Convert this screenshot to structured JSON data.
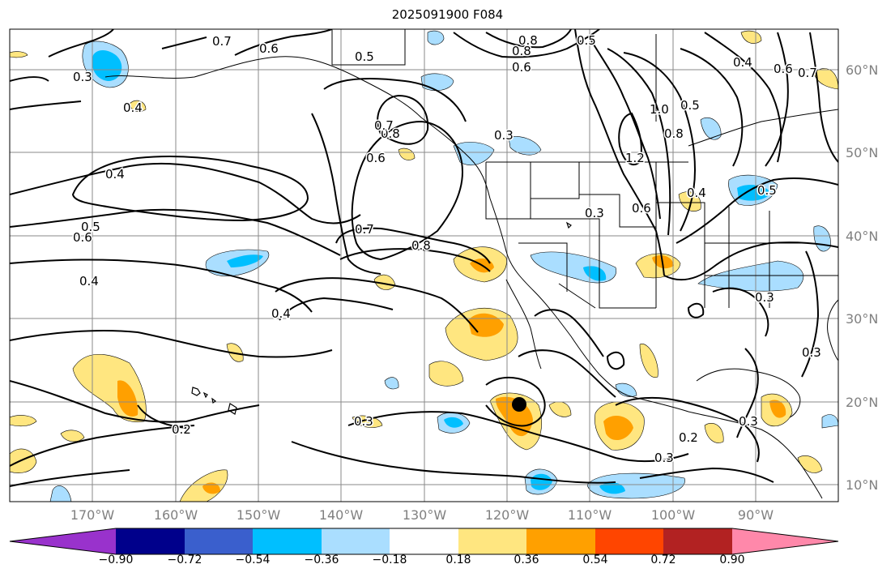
{
  "title": "2025091900 F084",
  "lat_labels": [
    "60°N",
    "50°N",
    "40°N",
    "30°N",
    "20°N",
    "10°N"
  ],
  "lon_labels": [
    "170°W",
    "160°W",
    "150°W",
    "140°W",
    "130°W",
    "120°W",
    "110°W",
    "100°W",
    "90°W"
  ],
  "colorbar": {
    "ticks": [
      "−0.90",
      "−0.72",
      "−0.54",
      "−0.36",
      "−0.18",
      "0.18",
      "0.36",
      "0.54",
      "0.72",
      "0.90"
    ],
    "colors": [
      "#9932cc",
      "#00008b",
      "#3a5fcd",
      "#00bfff",
      "#aadeff",
      "#ffffff",
      "#ffe680",
      "#ffa000",
      "#ff4500",
      "#b22222",
      "#ff88aa"
    ]
  },
  "contour_labels": [
    "0.7",
    "0.6",
    "0.5",
    "0.8",
    "0.8",
    "0.6",
    "0.5",
    "0.4",
    "0.6",
    "0.7",
    "0.4",
    "0.8",
    "0.6",
    "0.3",
    "1.0",
    "0.8",
    "0.5",
    "1.2",
    "0.7",
    "0.4",
    "0.3",
    "0.6",
    "0.5",
    "0.4",
    "0.5",
    "0.6",
    "0.7",
    "0.8",
    "0.4",
    "0.4",
    "0.3",
    "0.2",
    "0.3",
    "0.2",
    "0.3",
    "0.3",
    "0.3",
    "0.3"
  ],
  "marker": {
    "lon": -118.5,
    "lat": 19.5
  }
}
